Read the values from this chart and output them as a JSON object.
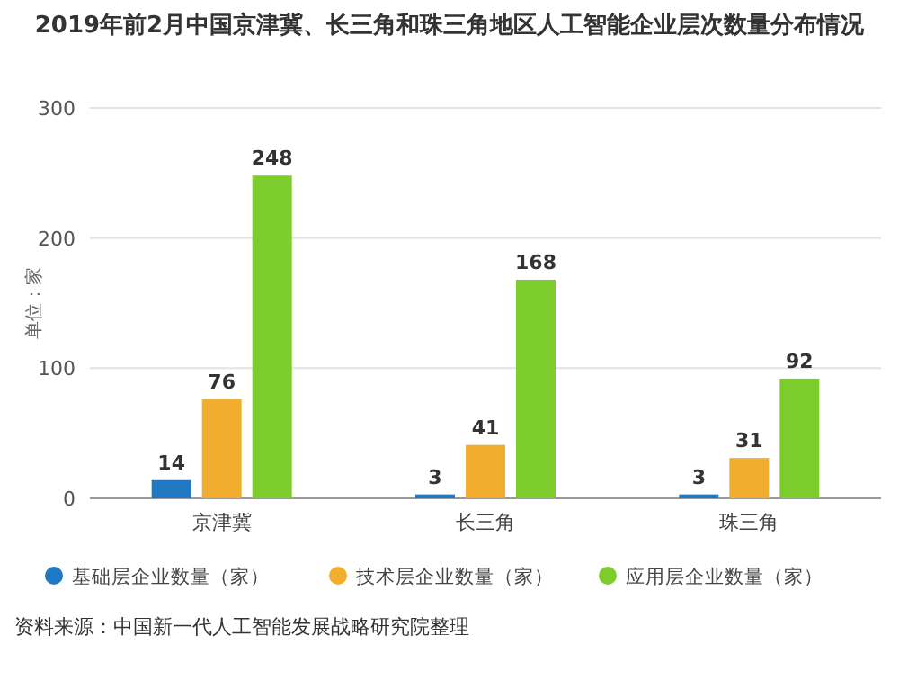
{
  "chart_data": {
    "type": "bar",
    "title": "2019年前2月中国京津冀、长三角和珠三角地区人工智能企业层次数量分布情况",
    "ylabel": "单位：家",
    "categories": [
      "京津冀",
      "长三角",
      "珠三角"
    ],
    "series": [
      {
        "name": "基础层企业数量（家）",
        "color": "#1f78c1",
        "values": [
          14,
          3,
          3
        ]
      },
      {
        "name": "技术层企业数量（家）",
        "color": "#f0ad2e",
        "values": [
          76,
          41,
          31
        ]
      },
      {
        "name": "应用层企业数量（家）",
        "color": "#7ccd2b",
        "values": [
          248,
          168,
          92
        ]
      }
    ],
    "ylim": [
      0,
      300
    ],
    "yticks": [
      0,
      100,
      200,
      300
    ],
    "grid": "y",
    "legend": "bottom",
    "data_labels": true,
    "annotations": [
      "资料来源：中国新一代人工智能发展战略研究院整理"
    ]
  }
}
